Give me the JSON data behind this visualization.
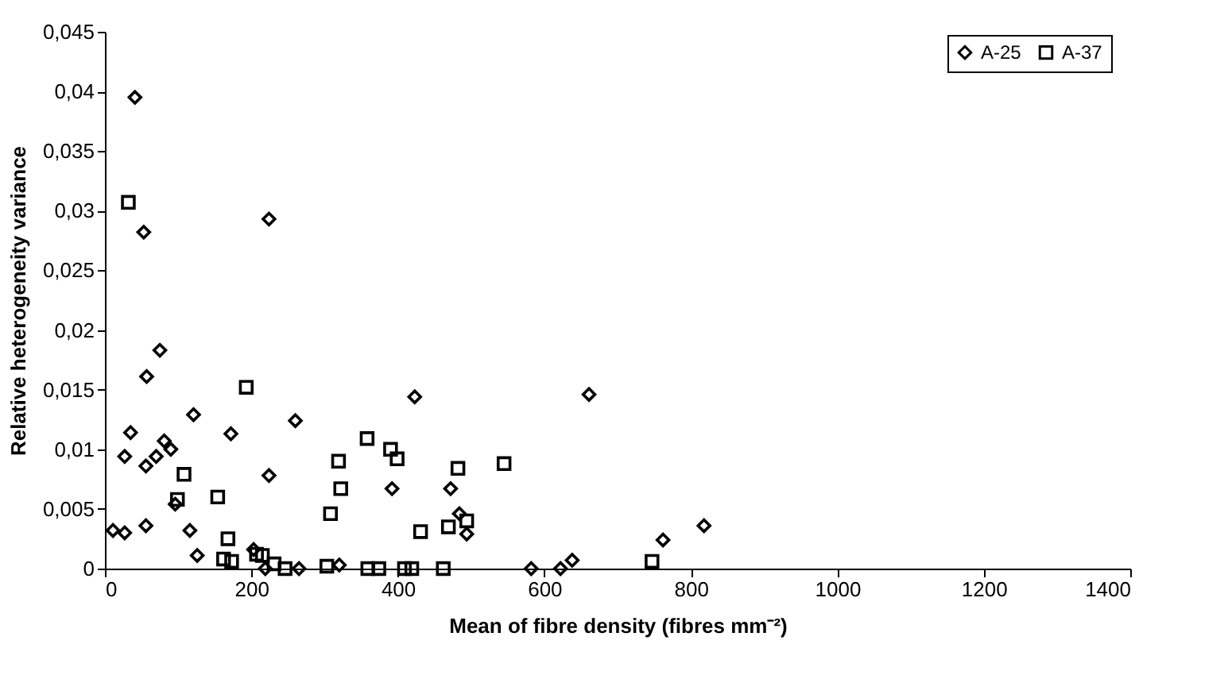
{
  "chart_data": {
    "type": "scatter",
    "xlabel": "Mean of fibre density (fibres mm⁻²)",
    "ylabel": "Relative heterogeneity variance",
    "xlim": [
      0,
      1400
    ],
    "xticks": [
      0,
      200,
      400,
      600,
      800,
      1000,
      1200,
      1400
    ],
    "ylim": [
      0,
      0.045
    ],
    "yticks": [
      {
        "value": 0,
        "label": "0"
      },
      {
        "value": 0.005,
        "label": "0,005"
      },
      {
        "value": 0.01,
        "label": "0,01"
      },
      {
        "value": 0.015,
        "label": "0,015"
      },
      {
        "value": 0.02,
        "label": "0,02"
      },
      {
        "value": 0.025,
        "label": "0,025"
      },
      {
        "value": 0.03,
        "label": "0,03"
      },
      {
        "value": 0.035,
        "label": "0,035"
      },
      {
        "value": 0.04,
        "label": "0,04"
      },
      {
        "value": 0.045,
        "label": "0,045"
      }
    ],
    "legend": "top right",
    "grid": false,
    "series": [
      {
        "name": "A-25",
        "color": "#000000",
        "marker": "diamond",
        "x": [
          11,
          27,
          41,
          53,
          27,
          35,
          57,
          75,
          56,
          70,
          81,
          90,
          96,
          56,
          116,
          121,
          126,
          172,
          224,
          224,
          203,
          219,
          260,
          265,
          320,
          392,
          423,
          472,
          484,
          494,
          661,
          582,
          622,
          638,
          762,
          818
        ],
        "values": [
          0.0032,
          0.003,
          0.0395,
          0.0282,
          0.0094,
          0.0114,
          0.0161,
          0.0183,
          0.0086,
          0.0094,
          0.0107,
          0.01,
          0.0054,
          0.0036,
          0.0032,
          0.0129,
          0.0011,
          0.0113,
          0.0078,
          0.0293,
          0.0016,
          0,
          0.0124,
          0,
          0.0003,
          0.0067,
          0.0144,
          0.0067,
          0.0046,
          0.0029,
          0.0146,
          0,
          0,
          0.0007,
          0.0024,
          0.0036
        ]
      },
      {
        "name": "A-37",
        "color": "#000000",
        "marker": "square",
        "x": [
          32,
          108,
          99,
          154,
          168,
          162,
          173,
          193,
          207,
          215,
          231,
          246,
          303,
          319,
          322,
          308,
          358,
          390,
          399,
          359,
          374,
          409,
          419,
          431,
          462,
          469,
          482,
          494,
          545,
          747
        ],
        "values": [
          0.0307,
          0.0079,
          0.0058,
          0.006,
          0.0025,
          0.0008,
          0.0006,
          0.0152,
          0.0012,
          0.0011,
          0.0004,
          0,
          0.0002,
          0.009,
          0.0067,
          0.0046,
          0.0109,
          0.01,
          0.0092,
          0,
          0,
          0,
          0,
          0.0031,
          0,
          0.0035,
          0.0084,
          0.004,
          0.0088,
          0.0006
        ]
      }
    ]
  }
}
